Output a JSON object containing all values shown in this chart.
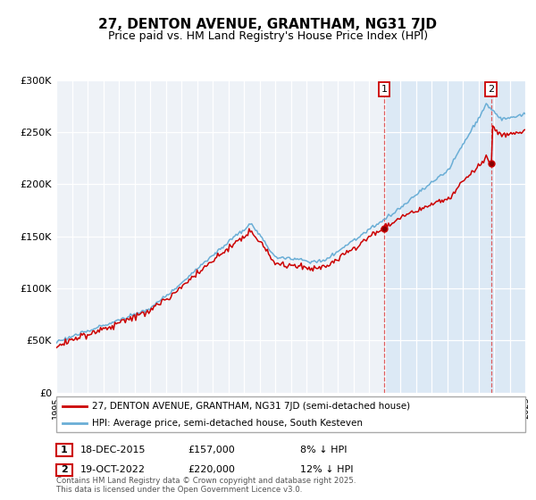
{
  "title": "27, DENTON AVENUE, GRANTHAM, NG31 7JD",
  "subtitle": "Price paid vs. HM Land Registry's House Price Index (HPI)",
  "legend_line1": "27, DENTON AVENUE, GRANTHAM, NG31 7JD (semi-detached house)",
  "legend_line2": "HPI: Average price, semi-detached house, South Kesteven",
  "annotation1_date": "18-DEC-2015",
  "annotation1_price": "£157,000",
  "annotation1_hpi": "8% ↓ HPI",
  "annotation1_year": 2015.97,
  "annotation1_value": 157000,
  "annotation2_date": "19-OCT-2022",
  "annotation2_price": "£220,000",
  "annotation2_hpi": "12% ↓ HPI",
  "annotation2_year": 2022.8,
  "annotation2_value": 220000,
  "footer": "Contains HM Land Registry data © Crown copyright and database right 2025.\nThis data is licensed under the Open Government Licence v3.0.",
  "xmin": 1995,
  "xmax": 2025,
  "ymin": 0,
  "ymax": 300000,
  "yticks": [
    0,
    50000,
    100000,
    150000,
    200000,
    250000,
    300000
  ],
  "ytick_labels": [
    "£0",
    "£50K",
    "£100K",
    "£150K",
    "£200K",
    "£250K",
    "£300K"
  ],
  "red_color": "#cc0000",
  "blue_color": "#6aaed6",
  "shade_color": "#dce9f5",
  "plot_bg_color": "#eef2f7",
  "title_fontsize": 11,
  "subtitle_fontsize": 9
}
